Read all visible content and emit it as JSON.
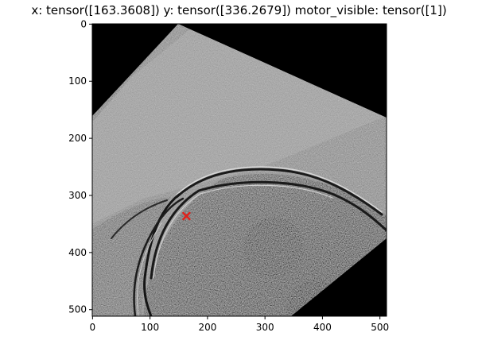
{
  "title": "x: tensor([163.3608]) y: tensor([336.2679]) motor_visible: tensor([1])",
  "image": {
    "width": 512,
    "height": 512,
    "x_range": [
      0,
      511
    ],
    "y_range": [
      511,
      0
    ],
    "x_ticks": [
      0,
      100,
      200,
      300,
      400,
      500
    ],
    "y_ticks": [
      0,
      100,
      200,
      300,
      400,
      500
    ],
    "rotation_deg": 45,
    "marker": {
      "x": 163.3608,
      "y": 336.2679,
      "symbol": "x",
      "color": "#e0201a"
    },
    "colormap": "gray"
  },
  "colors": {
    "background": "#ffffff",
    "outside": "#000000",
    "mid_gray": "#888888",
    "marker": "#e0201a"
  }
}
